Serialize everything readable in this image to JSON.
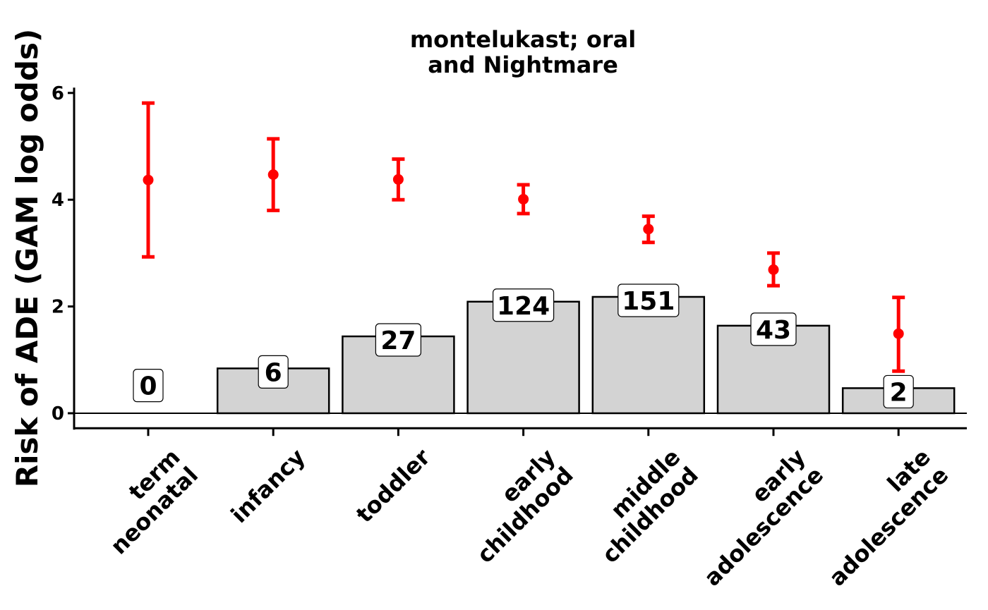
{
  "chart_data": {
    "type": "bar",
    "title_lines": [
      "montelukast; oral",
      "and Nightmare"
    ],
    "ylabel": "Risk of ADE (GAM log odds)",
    "xlabel": "",
    "ylim": [
      -0.28,
      6.1
    ],
    "yticks": [
      0,
      2,
      4,
      6
    ],
    "categories": [
      [
        "term",
        "neonatal"
      ],
      [
        "infancy"
      ],
      [
        "toddler"
      ],
      [
        "early",
        "childhood"
      ],
      [
        "middle",
        "childhood"
      ],
      [
        "early",
        "adolescence"
      ],
      [
        "late",
        "adolescence"
      ]
    ],
    "bar_heights": [
      0,
      0.84,
      1.44,
      2.09,
      2.18,
      1.64,
      0.47
    ],
    "counts": [
      "0",
      "6",
      "27",
      "124",
      "151",
      "43",
      "2"
    ],
    "estimate": [
      4.37,
      4.47,
      4.38,
      4.01,
      3.45,
      2.69,
      1.49
    ],
    "ci_lower": [
      2.93,
      3.8,
      4.0,
      3.74,
      3.2,
      2.39,
      0.79
    ],
    "ci_upper": [
      5.81,
      5.14,
      4.76,
      4.28,
      3.69,
      3.0,
      2.17
    ],
    "colors": {
      "bar_fill": "#d3d3d3",
      "bar_stroke": "#000000",
      "error": "#ff0000",
      "label_fill": "#ffffff"
    },
    "grid": false,
    "legend": "none"
  }
}
